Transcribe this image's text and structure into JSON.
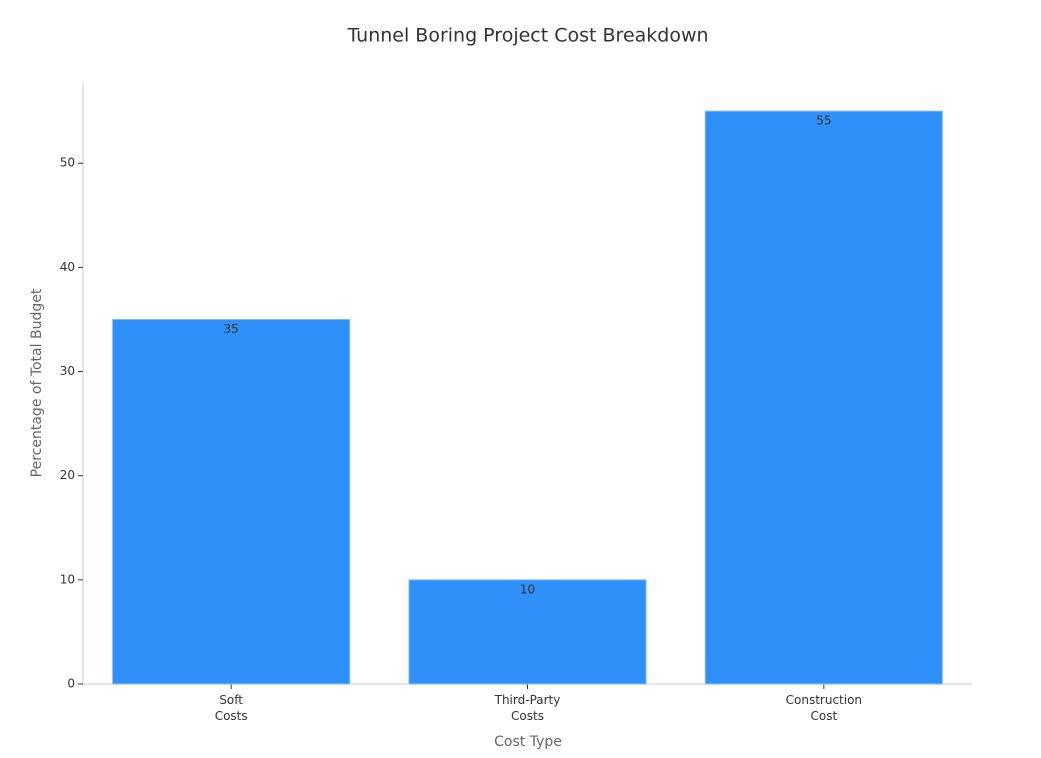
{
  "chart_data": {
    "type": "bar",
    "title": "Tunnel Boring Project Cost Breakdown",
    "x_label": "Cost Type",
    "y_label": "Percentage of Total Budget",
    "categories": [
      "Soft\nCosts",
      "Third-Party\nCosts",
      "Construction\nCost"
    ],
    "values": [
      35,
      10,
      55
    ],
    "color": "#2e90f8",
    "ylim": [
      0,
      57.8
    ],
    "yticks": [
      0,
      10,
      20,
      30,
      40,
      50
    ],
    "grid": false
  }
}
